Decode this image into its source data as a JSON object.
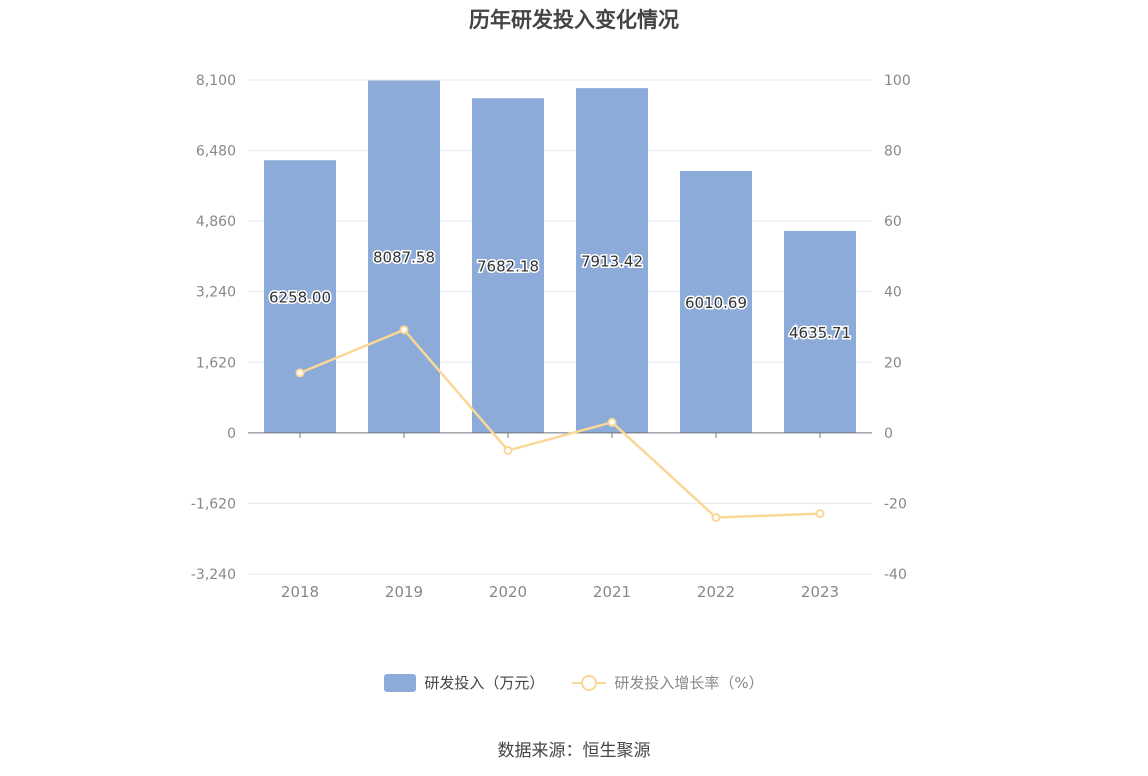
{
  "chart_data": {
    "type": "bar",
    "title": "历年研发投入变化情况",
    "categories": [
      "2018",
      "2019",
      "2020",
      "2021",
      "2022",
      "2023"
    ],
    "series": [
      {
        "name": "研发投入（万元）",
        "type": "bar",
        "axis": "left",
        "values": [
          6258.0,
          8087.58,
          7682.18,
          7913.42,
          6010.69,
          4635.71
        ],
        "labels": [
          "6258.00",
          "8087.58",
          "7682.18",
          "7913.42",
          "6010.69",
          "4635.71"
        ],
        "color": "#8dabd9"
      },
      {
        "name": "研发投入增长率（%）",
        "type": "line",
        "axis": "right",
        "values": [
          17.0,
          29.2,
          -5.0,
          3.0,
          -24.0,
          -22.9
        ],
        "color": "#fbd797"
      }
    ],
    "y_left": {
      "ylim": [
        -3240,
        8100
      ],
      "ticks": [
        -3240,
        -1620,
        0,
        1620,
        3240,
        4860,
        6480,
        8100
      ],
      "tick_labels": [
        "-3,240",
        "-1,620",
        "0",
        "1,620",
        "3,240",
        "4,860",
        "6,480",
        "8,100"
      ]
    },
    "y_right": {
      "ylim": [
        -40,
        100
      ],
      "ticks": [
        -40,
        -20,
        0,
        20,
        40,
        60,
        80,
        100
      ],
      "tick_labels": [
        "-40",
        "-20",
        "0",
        "20",
        "40",
        "60",
        "80",
        "100"
      ]
    },
    "grid": true,
    "legend_position": "bottom-center"
  },
  "legend": {
    "bar_label": "研发投入（万元）",
    "line_label": "研发投入增长率（%）"
  },
  "source_text": "数据来源：恒生聚源"
}
